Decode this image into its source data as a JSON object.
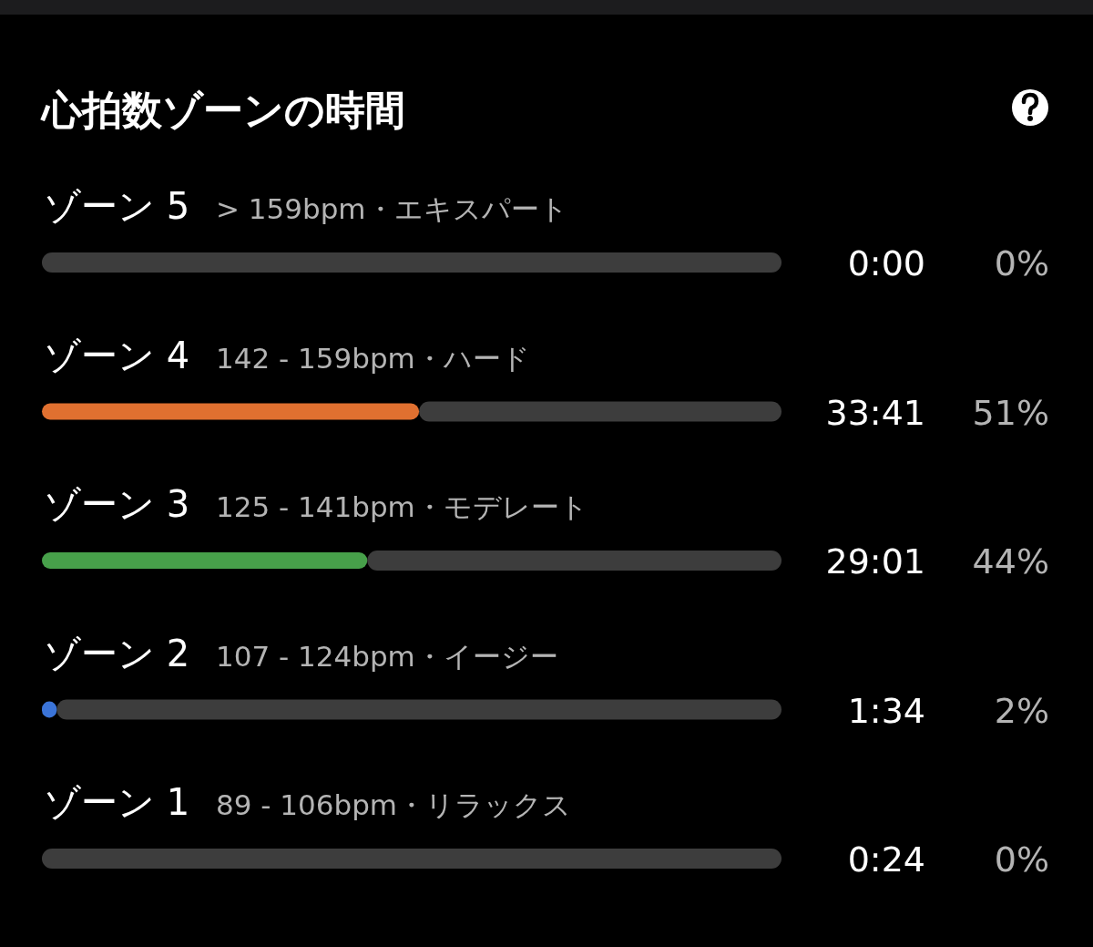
{
  "chart_data": {
    "type": "bar",
    "orientation": "horizontal",
    "title": "心拍数ゾーンの時間",
    "categories": [
      "ゾーン 5",
      "ゾーン 4",
      "ゾーン 3",
      "ゾーン 2",
      "ゾーン 1"
    ],
    "stacked": true,
    "series": [
      {
        "values": [
          0,
          51,
          44,
          2,
          0
        ],
        "colors": [
          null,
          "#e07030",
          "#47a04a",
          "#3b74d8",
          null
        ],
        "value_labels": [
          "0%",
          "51%",
          "44%",
          "2%",
          "0%"
        ]
      },
      {
        "values": [
          100,
          49,
          56,
          98,
          100
        ],
        "color": "#3d3d3d"
      }
    ],
    "xlim": [
      0,
      100
    ],
    "tick_labels": false,
    "annotations": [
      "> 159bpm・エキスパート",
      "0:00",
      "142 - 159bpm・ハード",
      "33:41",
      "125 - 141bpm・モデレート",
      "29:01",
      "107 - 124bpm・イージー",
      "1:34",
      "89 - 106bpm・リラックス",
      "0:24"
    ]
  }
}
